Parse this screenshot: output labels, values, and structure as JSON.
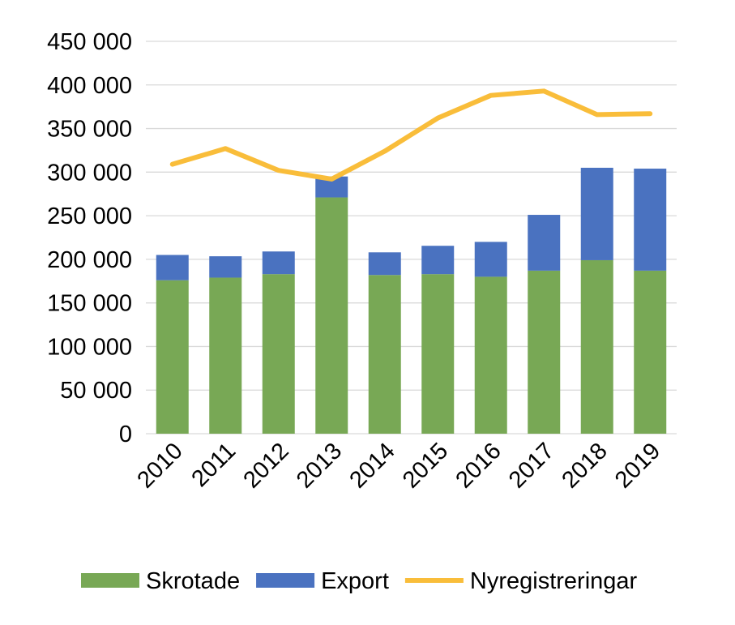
{
  "chart_data": {
    "type": "bar",
    "stacked": true,
    "categories": [
      "2010",
      "2011",
      "2012",
      "2013",
      "2014",
      "2015",
      "2016",
      "2017",
      "2018",
      "2019"
    ],
    "series": [
      {
        "name": "Skrotade",
        "type": "bar",
        "color": "#78A855",
        "values": [
          176000,
          179000,
          183000,
          271000,
          182000,
          183000,
          180000,
          187000,
          199000,
          187000
        ]
      },
      {
        "name": "Export",
        "type": "bar",
        "color": "#4A72C0",
        "values": [
          29000,
          24500,
          26000,
          24000,
          26000,
          32500,
          40000,
          64000,
          106000,
          117000
        ]
      },
      {
        "name": "Nyregistreringar",
        "type": "line",
        "color": "#F9BD3A",
        "values": [
          309000,
          327000,
          302000,
          292000,
          324000,
          362000,
          388000,
          393000,
          366000,
          367000
        ]
      }
    ],
    "ylim": [
      0,
      450000
    ],
    "yticks": [
      "0",
      "50 000",
      "100 000",
      "150 000",
      "200 000",
      "250 000",
      "300 000",
      "350 000",
      "400 000",
      "450 000"
    ],
    "grid": true,
    "legend": "bottom"
  }
}
